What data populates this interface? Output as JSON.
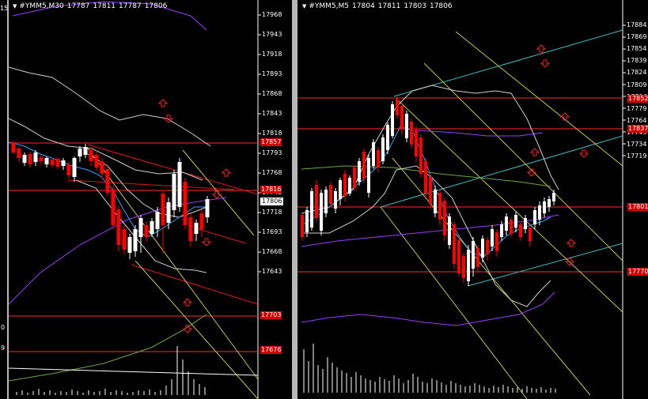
{
  "left_chart": {
    "symbol": "#YMM5,M30",
    "ohlc": [
      "17787",
      "17811",
      "17787",
      "17806"
    ],
    "price_scale": [
      "17968",
      "17943",
      "17918",
      "17893",
      "17868",
      "17843",
      "17818",
      "17793",
      "17768",
      "17743",
      "17718",
      "17693",
      "17668",
      "17643"
    ],
    "level_tags": [
      "17857",
      "17816",
      "17703",
      "17676"
    ],
    "current_price": "17806",
    "edge_labels": [
      "15",
      "0",
      "9"
    ]
  },
  "right_chart": {
    "symbol": "#YMM5,M5",
    "ohlc": [
      "17804",
      "17811",
      "17803",
      "17806"
    ],
    "price_scale": [
      "17884",
      "17869",
      "17854",
      "17839",
      "17824",
      "17809",
      "17794",
      "17779",
      "17764",
      "17749",
      "17734",
      "17719"
    ],
    "level_tags": [
      "17852",
      "17837",
      "17801",
      "17770"
    ]
  },
  "colors": {
    "background": "#000000",
    "bull_candle": "#ffffff",
    "bear_candle": "#ff0000",
    "level_line": "#ff2a2a",
    "channel_red": "#e01818",
    "channel_yellow": "#c8c84a",
    "channel_cyan": "#3fbfbf",
    "moving_average_blue": "#2fa0ff",
    "moving_average_purple": "#9a3cff",
    "envelope_gray": "#cfcfcf",
    "moving_average_green": "#6aaa40",
    "arrow_marker": "#ff2020",
    "separator": "#b8b8b8"
  },
  "icons": [
    "chart-menu-arrow-icon",
    "up-arrow-marker-icon",
    "down-arrow-marker-icon"
  ]
}
